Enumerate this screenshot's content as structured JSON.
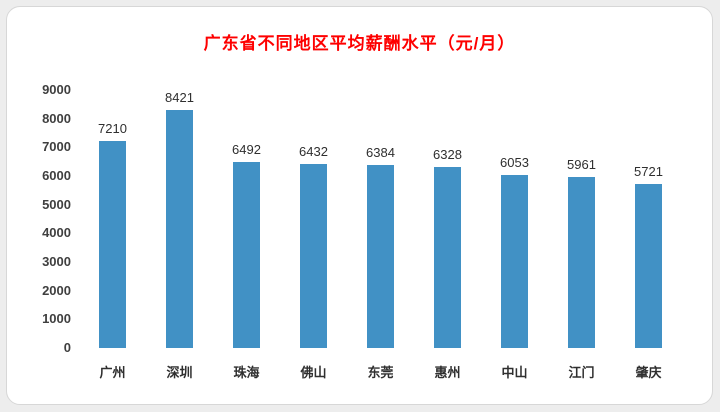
{
  "chart_data": {
    "type": "bar",
    "title": "广东省不同地区平均薪酬水平（元/月）",
    "categories": [
      "广州",
      "深圳",
      "珠海",
      "佛山",
      "东莞",
      "惠州",
      "中山",
      "江门",
      "肇庆"
    ],
    "values": [
      7210,
      8421,
      6492,
      6432,
      6384,
      6328,
      6053,
      5961,
      5721
    ],
    "ylim": [
      0,
      9000
    ],
    "ytick_step": 1000,
    "y_ticks": [
      9000,
      8000,
      7000,
      6000,
      5000,
      4000,
      3000,
      2000,
      1000,
      0
    ],
    "xlabel": "",
    "ylabel": "",
    "grid": false,
    "legend": false,
    "bar_color": "#4191c5",
    "title_color": "#fe0000",
    "tick_label_color": "#3f3f3f",
    "value_label_color": "#2f2f2f"
  }
}
